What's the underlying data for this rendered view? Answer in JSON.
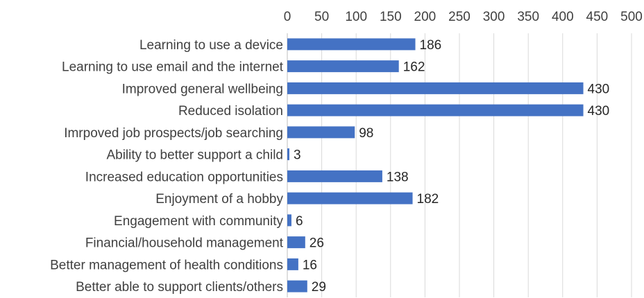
{
  "chart_data": {
    "type": "bar",
    "orientation": "horizontal",
    "title": "",
    "xlabel": "",
    "ylabel": "",
    "xlim": [
      0,
      500
    ],
    "x_ticks": [
      0,
      50,
      100,
      150,
      200,
      250,
      300,
      350,
      400,
      450,
      500
    ],
    "x_axis_position": "top",
    "grid": true,
    "legend": "none",
    "bar_color": "#4472c4",
    "categories": [
      "Learning to use a device",
      "Learning to use email and the internet",
      "Improved general wellbeing",
      "Reduced isolation",
      "Imrpoved job prospects/job searching",
      "Ability to better support a child",
      "Increased education opportunities",
      "Enjoyment of a hobby",
      "Engagement with community",
      "Financial/household management",
      "Better management of health conditions",
      "Better able to support clients/others"
    ],
    "values": [
      186,
      162,
      430,
      430,
      98,
      3,
      138,
      182,
      6,
      26,
      16,
      29
    ],
    "data_labels": [
      "186",
      "162",
      "430",
      "430",
      "98",
      "3",
      "138",
      "182",
      "6",
      "26",
      "16",
      "29"
    ]
  }
}
